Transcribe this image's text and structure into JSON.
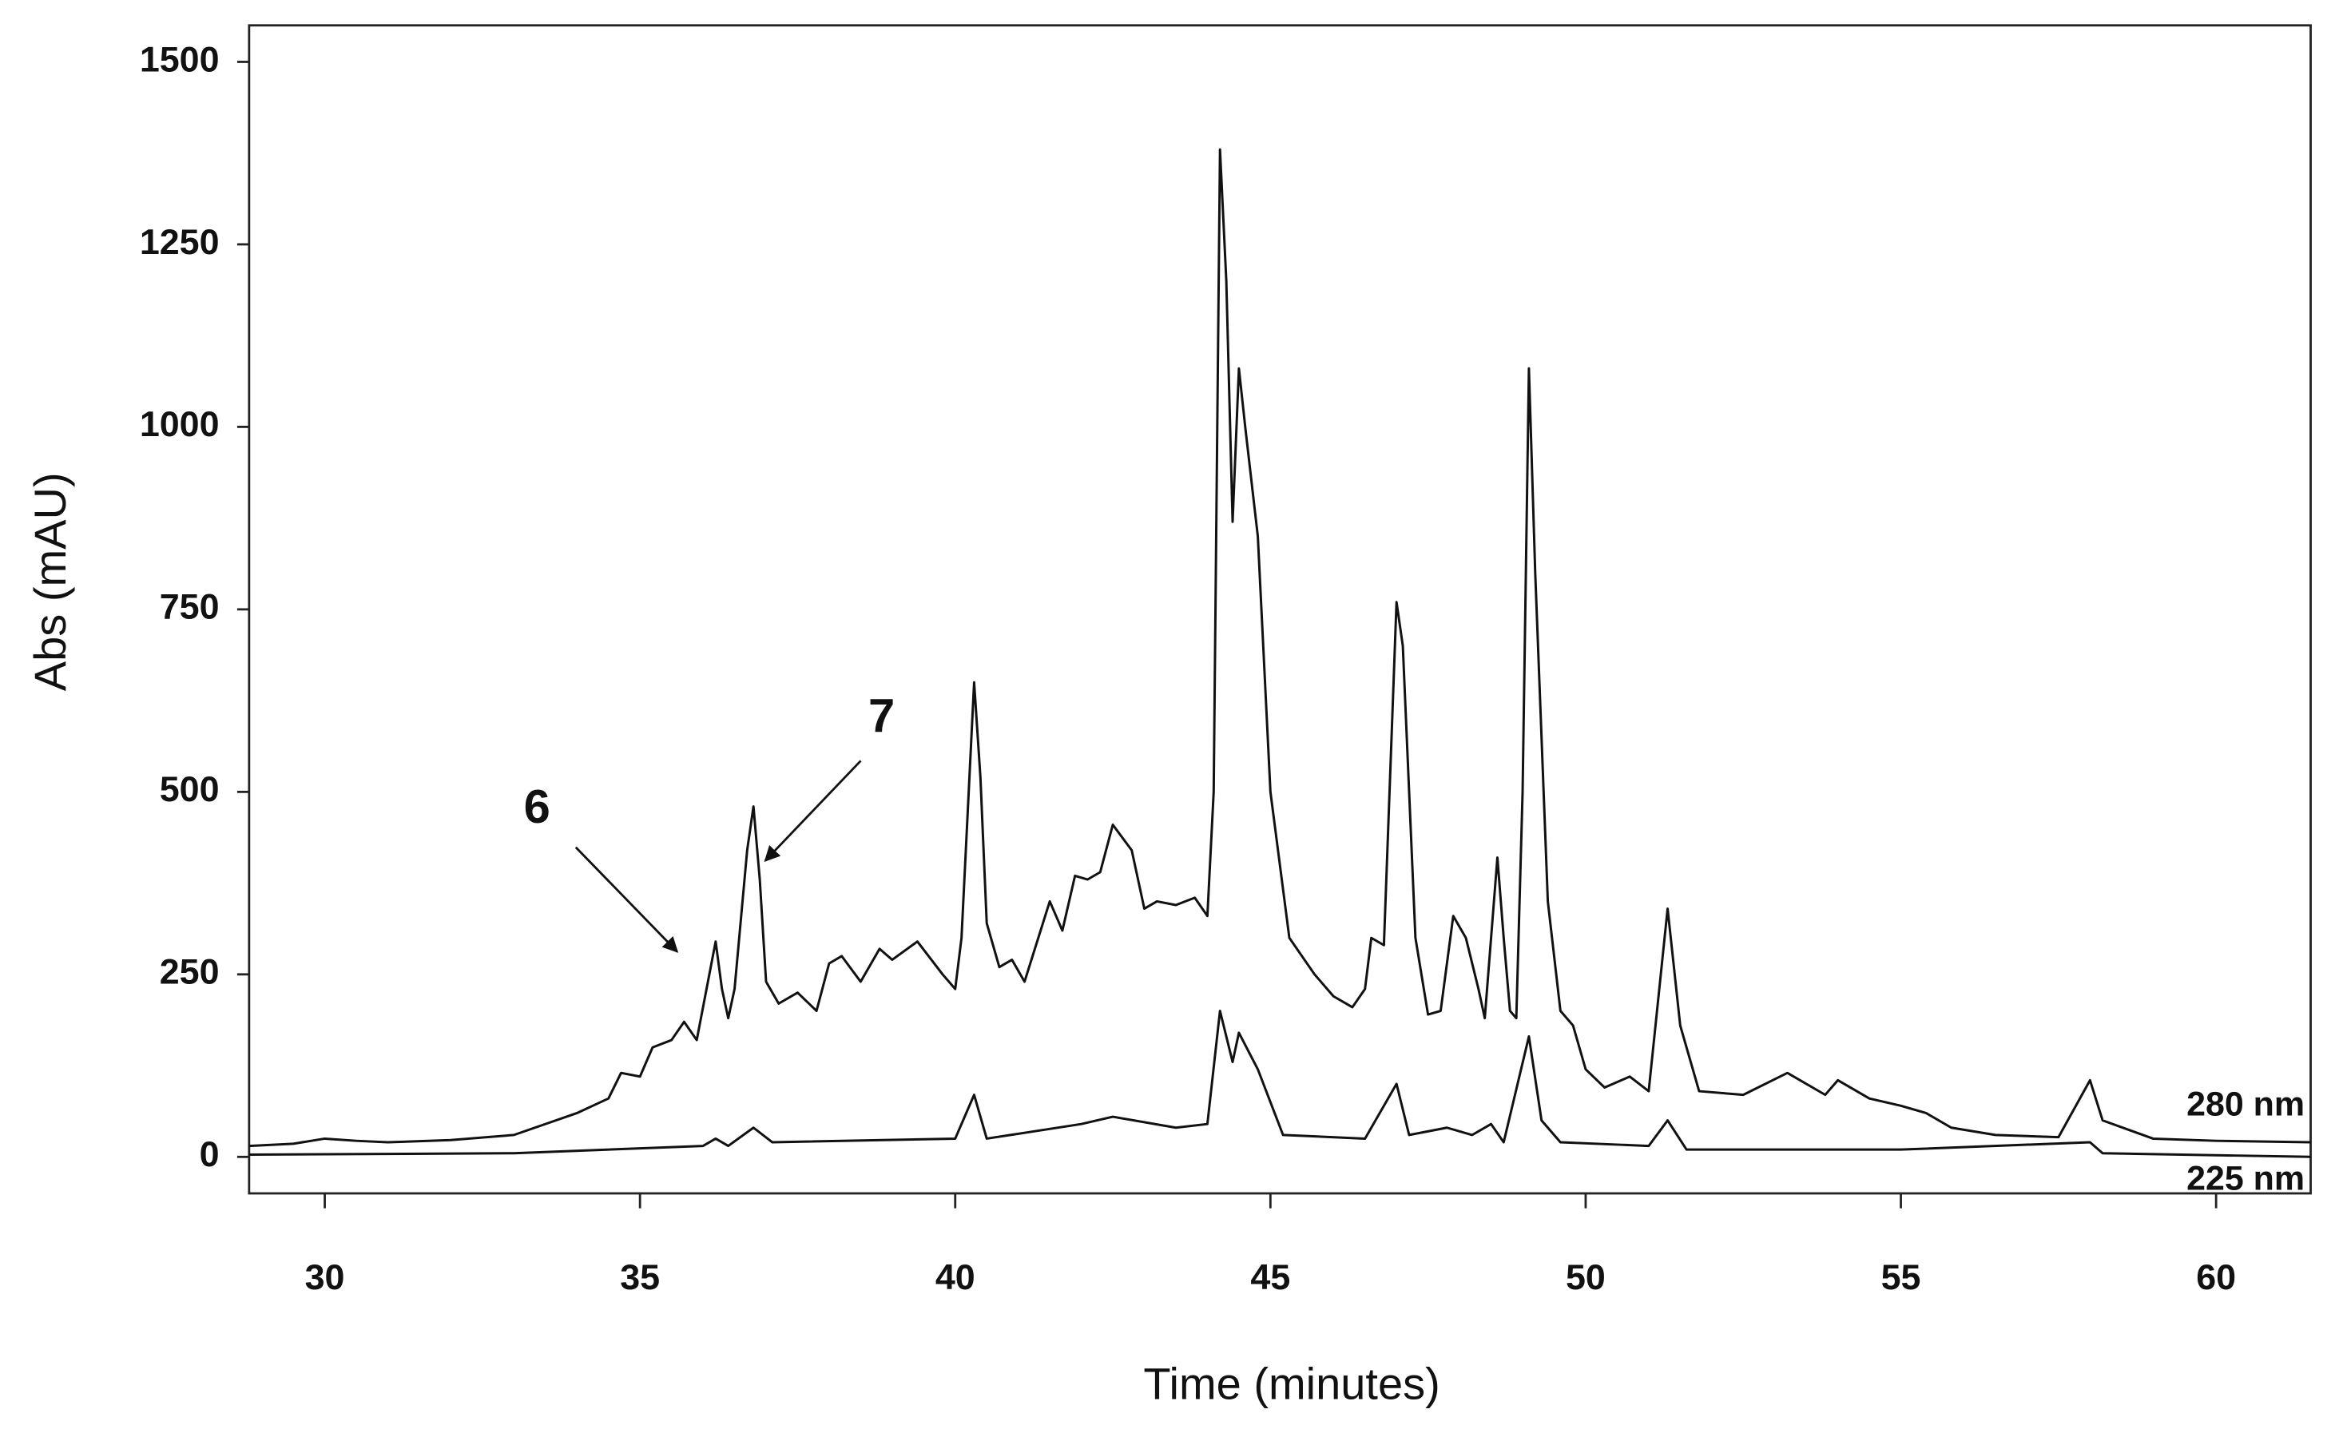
{
  "chart_data": {
    "type": "line",
    "x_label": "Time (minutes)",
    "y_label": "Abs  (mAU)",
    "xlim": [
      28.8,
      61.5
    ],
    "ylim": [
      -50,
      1550
    ],
    "xticks": [
      30,
      35,
      40,
      45,
      50,
      55,
      60
    ],
    "yticks": [
      0,
      250,
      500,
      750,
      1000,
      1250,
      1500
    ],
    "grid": false,
    "annotations": [
      "6",
      "7"
    ],
    "series": [
      {
        "name": "280 nm",
        "color": "#111111",
        "x": [
          28.8,
          29.5,
          30,
          30.5,
          31,
          32,
          33,
          34,
          34.5,
          34.7,
          35,
          35.2,
          35.5,
          35.7,
          35.9,
          36.1,
          36.2,
          36.3,
          36.4,
          36.5,
          36.7,
          36.8,
          36.9,
          37,
          37.2,
          37.5,
          37.8,
          38,
          38.2,
          38.5,
          38.8,
          39,
          39.4,
          39.8,
          40,
          40.1,
          40.3,
          40.4,
          40.5,
          40.7,
          40.9,
          41.1,
          41.5,
          41.7,
          41.9,
          42.1,
          42.3,
          42.5,
          42.8,
          43,
          43.2,
          43.5,
          43.8,
          44,
          44.1,
          44.2,
          44.3,
          44.4,
          44.5,
          44.6,
          44.8,
          45,
          45.3,
          45.7,
          46,
          46.3,
          46.5,
          46.6,
          46.8,
          47,
          47.1,
          47.3,
          47.5,
          47.7,
          47.9,
          48.1,
          48.3,
          48.4,
          48.6,
          48.7,
          48.8,
          48.9,
          49,
          49.1,
          49.2,
          49.4,
          49.6,
          49.8,
          50,
          50.3,
          50.7,
          51,
          51.3,
          51.5,
          51.8,
          52.5,
          53.2,
          53.8,
          54,
          54.5,
          55,
          55.4,
          55.8,
          56.5,
          57.5,
          58,
          58.2,
          59,
          60,
          61.5
        ],
        "values": [
          15,
          18,
          25,
          22,
          20,
          23,
          30,
          60,
          80,
          115,
          110,
          150,
          160,
          185,
          160,
          250,
          295,
          230,
          190,
          230,
          420,
          480,
          380,
          240,
          210,
          225,
          200,
          265,
          275,
          240,
          285,
          270,
          295,
          250,
          230,
          300,
          650,
          520,
          320,
          260,
          270,
          240,
          350,
          310,
          385,
          380,
          390,
          455,
          420,
          340,
          350,
          345,
          355,
          330,
          500,
          1380,
          1200,
          870,
          1080,
          1000,
          850,
          500,
          300,
          250,
          220,
          205,
          230,
          300,
          290,
          760,
          700,
          300,
          195,
          200,
          330,
          300,
          230,
          190,
          410,
          300,
          200,
          190,
          500,
          1080,
          800,
          350,
          200,
          180,
          120,
          95,
          110,
          90,
          340,
          180,
          90,
          85,
          115,
          85,
          105,
          80,
          70,
          60,
          40,
          30,
          27,
          105,
          50,
          25,
          22,
          20
        ]
      },
      {
        "name": "225 nm",
        "color": "#111111",
        "x": [
          28.8,
          33,
          36,
          36.2,
          36.4,
          36.8,
          37.1,
          40,
          40.3,
          40.5,
          42,
          42.5,
          43.5,
          44,
          44.2,
          44.4,
          44.5,
          44.8,
          45.2,
          46.5,
          47,
          47.2,
          47.8,
          48.2,
          48.5,
          48.7,
          49.1,
          49.3,
          49.6,
          51,
          51.3,
          51.6,
          55,
          58,
          58.2,
          61.5
        ],
        "values": [
          3,
          5,
          15,
          25,
          15,
          40,
          20,
          25,
          85,
          25,
          45,
          55,
          40,
          45,
          200,
          130,
          170,
          120,
          30,
          25,
          100,
          30,
          40,
          30,
          45,
          20,
          165,
          50,
          20,
          15,
          50,
          10,
          10,
          20,
          5,
          0
        ]
      }
    ]
  }
}
